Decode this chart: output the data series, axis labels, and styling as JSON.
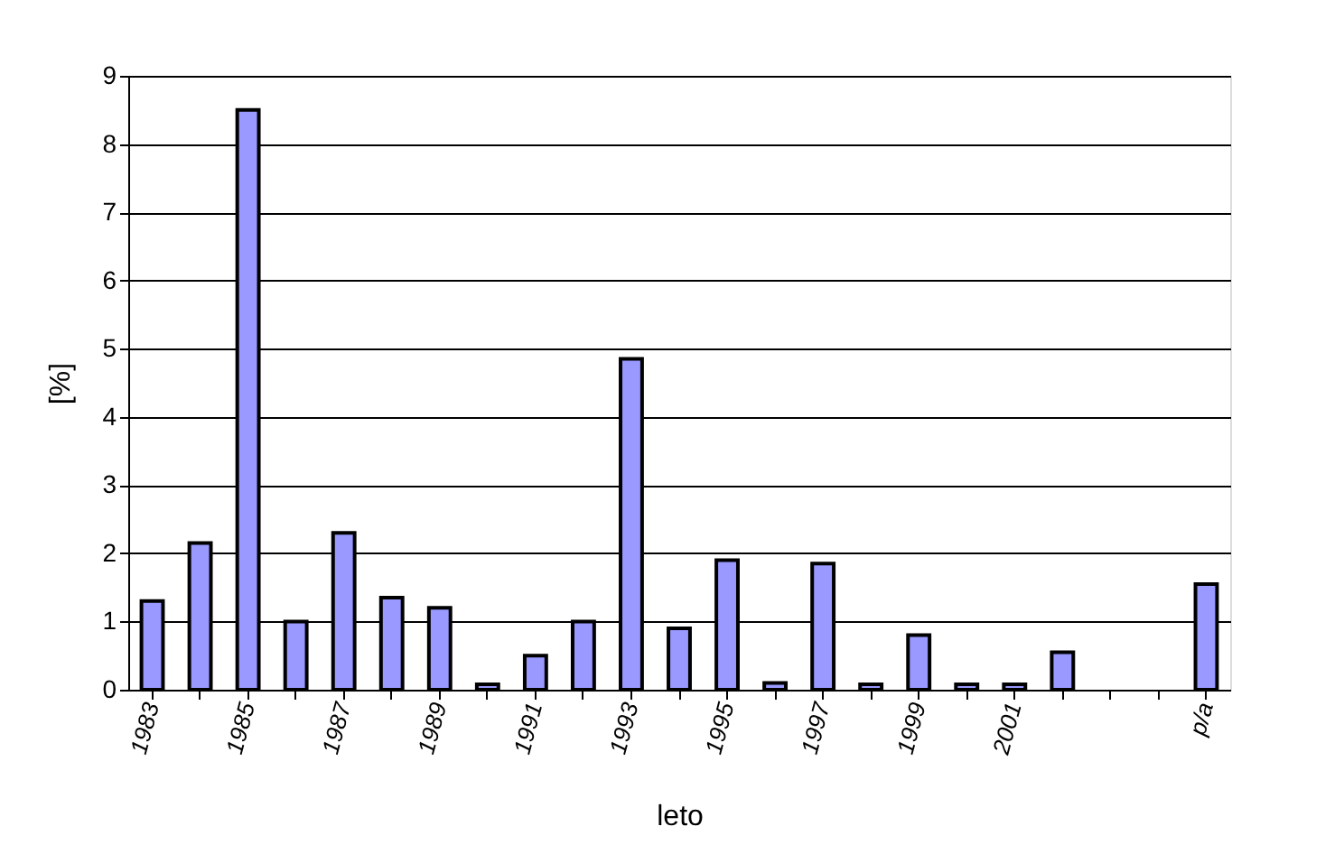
{
  "chart_data": {
    "type": "bar",
    "xlabel": "leto",
    "ylabel": "[%]",
    "categories": [
      "1983",
      null,
      "1985",
      null,
      "1987",
      null,
      "1989",
      null,
      "1991",
      null,
      "1993",
      null,
      "1995",
      null,
      "1997",
      null,
      "1999",
      null,
      "2001",
      null,
      null,
      null,
      "p/a"
    ],
    "values": [
      1.3,
      2.15,
      8.5,
      1.0,
      2.3,
      1.35,
      1.2,
      0.08,
      0.5,
      1.0,
      4.85,
      0.9,
      1.9,
      0.1,
      1.85,
      0.08,
      0.8,
      0.08,
      0.08,
      0.55,
      null,
      null,
      1.55
    ],
    "color": "#9999ff",
    "ylim": [
      0,
      9
    ],
    "yticks": [
      0,
      1,
      2,
      3,
      4,
      5,
      6,
      7,
      8,
      9
    ],
    "grid": "y"
  }
}
